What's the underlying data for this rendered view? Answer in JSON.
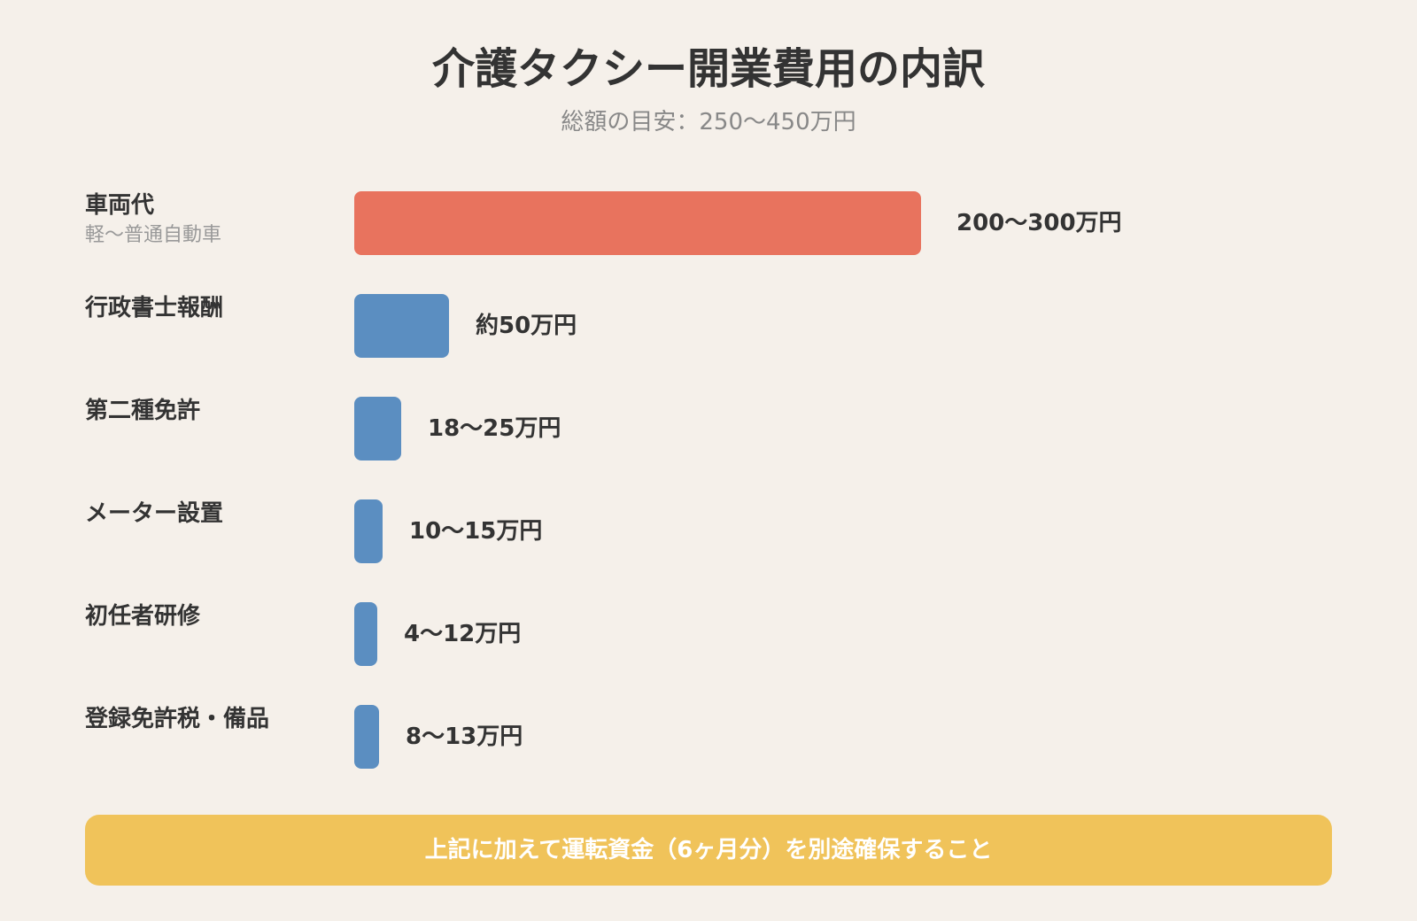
{
  "chart_data": {
    "type": "bar",
    "orientation": "horizontal",
    "title": "介護タクシー開業費用の内訳",
    "subtitle": "総額の目安：250〜450万円",
    "unit": "万円",
    "categories": [
      {
        "name": "車両代",
        "sub": "軽〜普通自動車",
        "min": 200,
        "max": 300,
        "label": "200〜300万円",
        "highlight": true
      },
      {
        "name": "行政書士報酬",
        "sub": "",
        "min": 50,
        "max": 50,
        "label": "約50万円",
        "highlight": false
      },
      {
        "name": "第二種免許",
        "sub": "",
        "min": 18,
        "max": 25,
        "label": "18〜25万円",
        "highlight": false
      },
      {
        "name": "メーター設置",
        "sub": "",
        "min": 10,
        "max": 15,
        "label": "10〜15万円",
        "highlight": false
      },
      {
        "name": "初任者研修",
        "sub": "",
        "min": 4,
        "max": 12,
        "label": "4〜12万円",
        "highlight": false
      },
      {
        "name": "登録免許税・備品",
        "sub": "",
        "min": 8,
        "max": 13,
        "label": "8〜13万円",
        "highlight": false
      }
    ],
    "colors": {
      "highlight": "#e8735e",
      "default": "#5b8ec1"
    },
    "xlim": [
      0,
      300
    ],
    "grid": false,
    "legend": "none"
  },
  "note": {
    "text": "上記に加えて運転資金（6ヶ月分）を別途確保すること",
    "color": "#f0c35a"
  }
}
